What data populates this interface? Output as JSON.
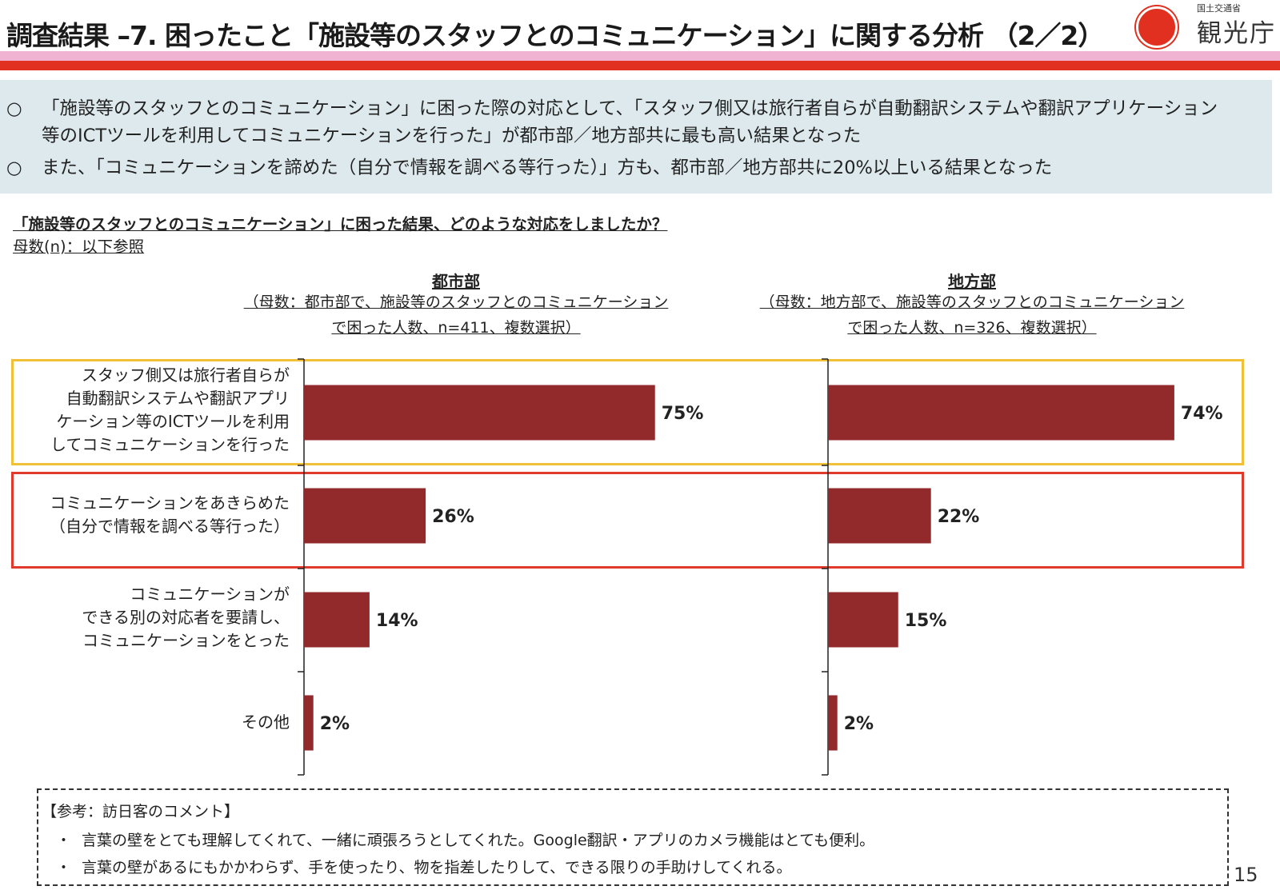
{
  "header": {
    "title": "調査結果 –7. 困ったこと「施設等のスタッフとのコミュニケーション」に関する分析 （2／2）",
    "logo_small": "国土交通省",
    "logo_main": "観光庁"
  },
  "summary": {
    "lines": [
      {
        "bullet": "○",
        "text": "「施設等のスタッフとのコミュニケーション」に困った際の対応として、「スタッフ側又は旅行者自らが自動翻訳システムや翻訳アプリケーション"
      },
      {
        "bullet": "",
        "text": "等のICTツールを利用してコミュニケーションを行った」が都市部／地方部共に最も高い結果となった"
      },
      {
        "bullet": "○",
        "text": "また、「コミュニケーションを諦めた（自分で情報を調べる等行った）」方も、都市部／地方部共に20%以上いる結果となった"
      }
    ]
  },
  "question": "「施設等のスタッフとのコミュニケーション」に困った結果、どのような対応をしましたか？",
  "base_note": "母数(n)：以下参照",
  "colors": {
    "bar": "#92292b",
    "highlight_yellow": "#f2c037",
    "highlight_red": "#e03a2c",
    "accent": "#e1301f"
  },
  "chart_data": [
    {
      "type": "bar",
      "orientation": "horizontal",
      "title": "都市部",
      "subtitle": [
        "（母数：都市部で、施設等のスタッフとのコミュニケーション",
        "で困った人数、n=411、複数選択）"
      ],
      "categories": [
        [
          "スタッフ側又は旅行者自らが",
          "自動翻訳システムや翻訳アプリ",
          "ケーション等のICTツールを利用",
          "してコミュニケーションを行った"
        ],
        [
          "コミュニケーションをあきらめた",
          "（自分で情報を調べる等行った）"
        ],
        [
          "コミュニケーションが",
          "できる別の対応者を要請し、",
          "コミュニケーションをとった"
        ],
        [
          "その他"
        ]
      ],
      "values": [
        75,
        26,
        14,
        2
      ],
      "labels": [
        "75%",
        "26%",
        "14%",
        "2%"
      ],
      "unit": "%"
    },
    {
      "type": "bar",
      "orientation": "horizontal",
      "title": "地方部",
      "subtitle": [
        "（母数：地方部で、施設等のスタッフとのコミュニケーション",
        "で困った人数、n=326、複数選択）"
      ],
      "categories": [
        [
          "スタッフ側又は旅行者自らが",
          "自動翻訳システムや翻訳アプリ",
          "ケーション等のICTツールを利用",
          "してコミュニケーションを行った"
        ],
        [
          "コミュニケーションをあきらめた",
          "（自分で情報を調べる等行った）"
        ],
        [
          "コミュニケーションが",
          "できる別の対応者を要請し、",
          "コミュニケーションをとった"
        ],
        [
          "その他"
        ]
      ],
      "values": [
        74,
        22,
        15,
        2
      ],
      "labels": [
        "74%",
        "22%",
        "15%",
        "2%"
      ],
      "unit": "%"
    }
  ],
  "comments": {
    "heading": "【参考：訪日客のコメント】",
    "items": [
      {
        "bullet": "・",
        "text": "言葉の壁をとても理解してくれて、一緒に頑張ろうとしてくれた。Google翻訳・アプリのカメラ機能はとても便利。"
      },
      {
        "bullet": "・",
        "text": "言葉の壁があるにもかかわらず、手を使ったり、物を指差したりして、できる限りの手助けしてくれる。"
      }
    ]
  },
  "page_number": "15"
}
